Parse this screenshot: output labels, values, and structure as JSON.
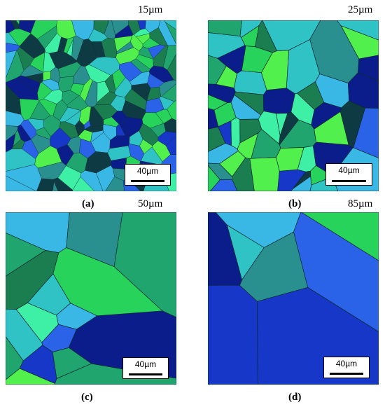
{
  "panels": [
    {
      "id": "a",
      "label": "(a)",
      "grain_size": "15µm",
      "scale_bar": "40µm"
    },
    {
      "id": "b",
      "label": "(b)",
      "grain_size": "25µm",
      "scale_bar": "40µm"
    },
    {
      "id": "c",
      "label": "(c)",
      "grain_size": "50µm",
      "scale_bar": "40µm"
    },
    {
      "id": "d",
      "label": "(d)",
      "grain_size": "85µm",
      "scale_bar": "40µm"
    }
  ],
  "palette": [
    "#0b1d8a",
    "#1737c8",
    "#2a63e8",
    "#1fa56d",
    "#27d35a",
    "#1a7e50",
    "#0e3b43",
    "#2fc3c6",
    "#3df0a6",
    "#39b7e5",
    "#52f04d",
    "#2a8f8f"
  ]
}
